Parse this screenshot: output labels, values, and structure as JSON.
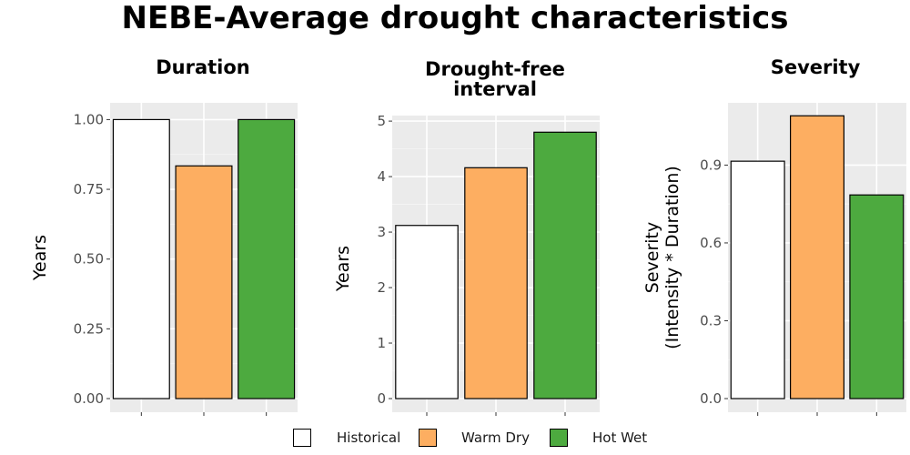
{
  "title": "NEBE-Average drought characteristics",
  "legend": [
    {
      "label": "Historical",
      "color": "#ffffff"
    },
    {
      "label": "Warm Dry",
      "color": "#fdae61"
    },
    {
      "label": "Hot Wet",
      "color": "#4daa3f"
    }
  ],
  "chart_data": [
    {
      "type": "bar",
      "title": "Duration",
      "ylabel": "Years",
      "ylim": [
        0,
        1.06
      ],
      "yticks": [
        0.0,
        0.25,
        0.5,
        0.75,
        1.0
      ],
      "ytick_labels": [
        "0.00",
        "0.25",
        "0.50",
        "0.75",
        "1.00"
      ],
      "categories": [
        "Historical",
        "Warm Dry",
        "Hot Wet"
      ],
      "values": [
        1.0,
        0.834,
        1.0
      ],
      "grid": true
    },
    {
      "type": "bar",
      "title": "Drought-free interval",
      "title_lines": [
        "Drought-free",
        "interval"
      ],
      "ylabel": "Years",
      "ylim": [
        0,
        5.1
      ],
      "yticks": [
        0,
        1,
        2,
        3,
        4,
        5
      ],
      "ytick_labels": [
        "0",
        "1",
        "2",
        "3",
        "4",
        "5"
      ],
      "categories": [
        "Historical",
        "Warm Dry",
        "Hot Wet"
      ],
      "values": [
        3.12,
        4.16,
        4.8
      ],
      "grid": true
    },
    {
      "type": "bar",
      "title": "Severity",
      "ylabel": "Severity (Intensity * Duration)",
      "ylabel_lines": [
        "Severity",
        "(Intensity * Duration)"
      ],
      "ylim": [
        0,
        1.14
      ],
      "yticks": [
        0.0,
        0.3,
        0.6,
        0.9
      ],
      "ytick_labels": [
        "0.0",
        "0.3",
        "0.6",
        "0.9"
      ],
      "categories": [
        "Historical",
        "Warm Dry",
        "Hot Wet"
      ],
      "values": [
        0.915,
        1.09,
        0.785
      ],
      "grid": true
    }
  ]
}
